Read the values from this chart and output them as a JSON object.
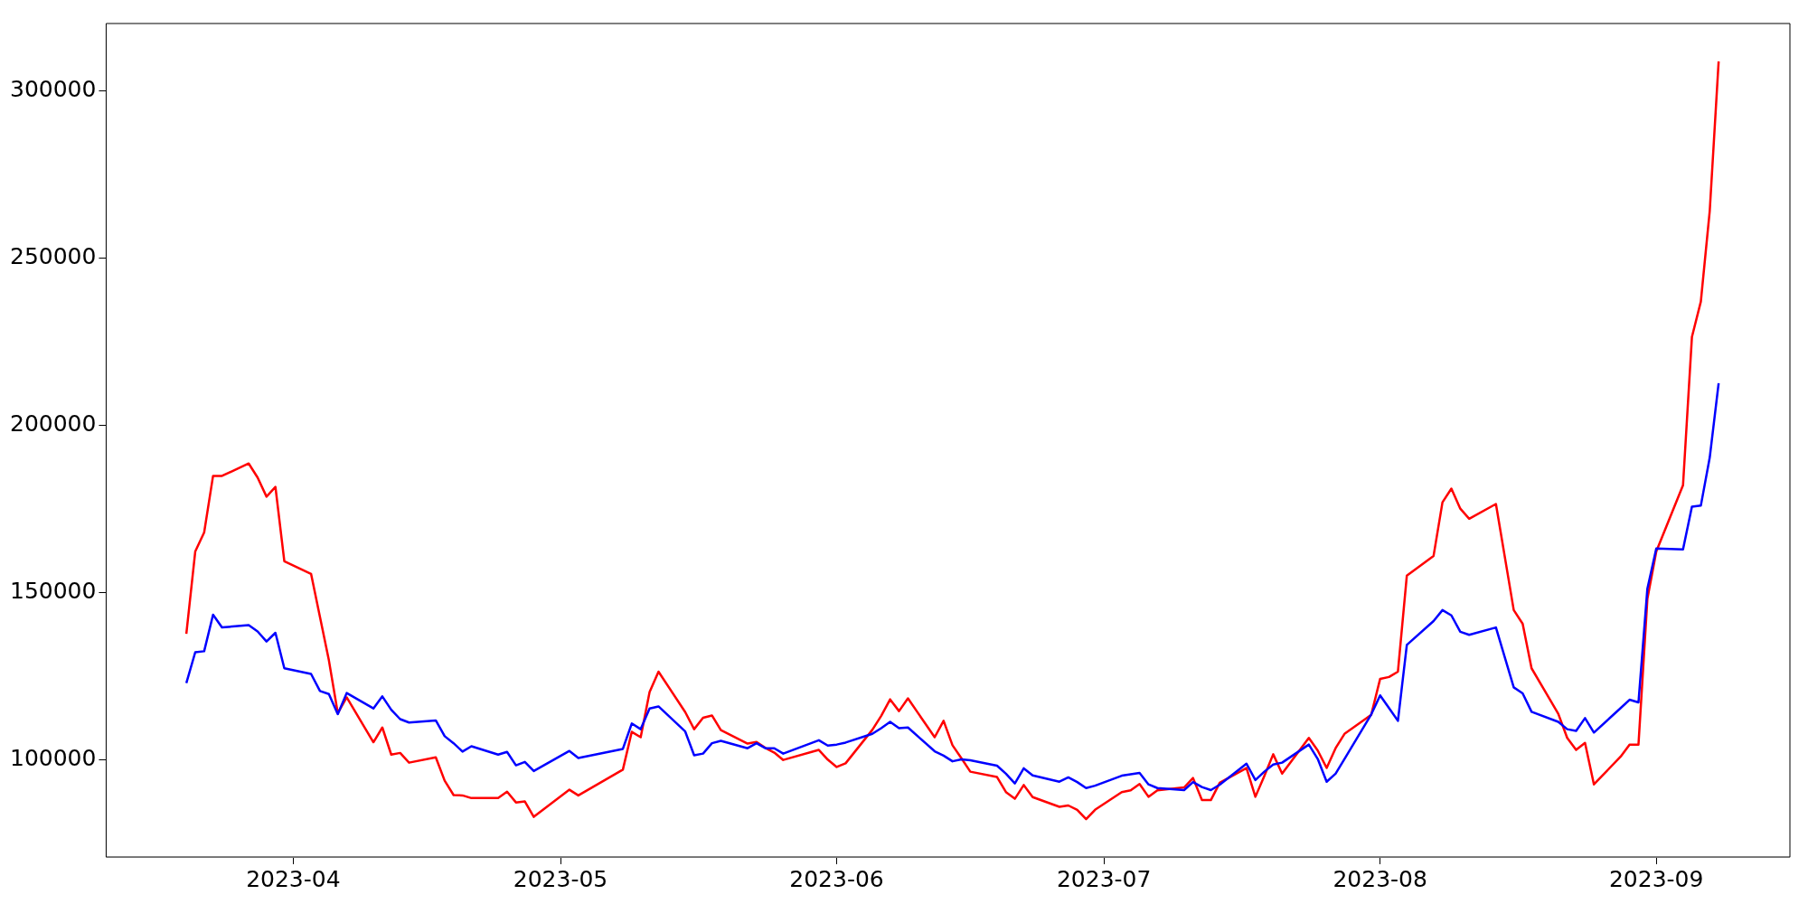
{
  "chart_data": {
    "type": "line",
    "x": [
      "2023-03-20",
      "2023-03-21",
      "2023-03-22",
      "2023-03-23",
      "2023-03-24",
      "2023-03-27",
      "2023-03-28",
      "2023-03-29",
      "2023-03-30",
      "2023-03-31",
      "2023-04-03",
      "2023-04-04",
      "2023-04-05",
      "2023-04-06",
      "2023-04-07",
      "2023-04-10",
      "2023-04-11",
      "2023-04-12",
      "2023-04-13",
      "2023-04-14",
      "2023-04-17",
      "2023-04-18",
      "2023-04-19",
      "2023-04-20",
      "2023-04-21",
      "2023-04-24",
      "2023-04-25",
      "2023-04-26",
      "2023-04-27",
      "2023-04-28",
      "2023-05-02",
      "2023-05-03",
      "2023-05-08",
      "2023-05-09",
      "2023-05-10",
      "2023-05-11",
      "2023-05-12",
      "2023-05-15",
      "2023-05-16",
      "2023-05-17",
      "2023-05-18",
      "2023-05-19",
      "2023-05-22",
      "2023-05-23",
      "2023-05-24",
      "2023-05-25",
      "2023-05-26",
      "2023-05-30",
      "2023-05-31",
      "2023-06-01",
      "2023-06-02",
      "2023-06-05",
      "2023-06-06",
      "2023-06-07",
      "2023-06-08",
      "2023-06-09",
      "2023-06-12",
      "2023-06-13",
      "2023-06-14",
      "2023-06-15",
      "2023-06-16",
      "2023-06-19",
      "2023-06-20",
      "2023-06-21",
      "2023-06-22",
      "2023-06-23",
      "2023-06-26",
      "2023-06-27",
      "2023-06-28",
      "2023-06-29",
      "2023-06-30",
      "2023-07-03",
      "2023-07-04",
      "2023-07-05",
      "2023-07-06",
      "2023-07-07",
      "2023-07-10",
      "2023-07-11",
      "2023-07-12",
      "2023-07-13",
      "2023-07-14",
      "2023-07-17",
      "2023-07-18",
      "2023-07-19",
      "2023-07-20",
      "2023-07-21",
      "2023-07-24",
      "2023-07-25",
      "2023-07-26",
      "2023-07-27",
      "2023-07-28",
      "2023-07-31",
      "2023-08-01",
      "2023-08-02",
      "2023-08-03",
      "2023-08-04",
      "2023-08-07",
      "2023-08-08",
      "2023-08-09",
      "2023-08-10",
      "2023-08-11",
      "2023-08-14",
      "2023-08-16",
      "2023-08-17",
      "2023-08-18",
      "2023-08-21",
      "2023-08-22",
      "2023-08-23",
      "2023-08-24",
      "2023-08-25",
      "2023-08-28",
      "2023-08-29",
      "2023-08-30",
      "2023-08-31",
      "2023-09-01",
      "2023-09-04",
      "2023-09-05",
      "2023-09-06",
      "2023-09-07",
      "2023-09-08"
    ],
    "series": [
      {
        "color": "#ff0000",
        "values": [
          137600,
          162200,
          167900,
          184800,
          184800,
          188500,
          184300,
          178600,
          181500,
          159300,
          155500,
          142600,
          129700,
          113900,
          118600,
          105200,
          109600,
          101500,
          102000,
          99100,
          100700,
          93700,
          89400,
          89300,
          88500,
          88500,
          90400,
          87200,
          87500,
          82900,
          91000,
          89300,
          97000,
          108300,
          106700,
          120200,
          126300,
          114200,
          109100,
          112500,
          113200,
          108800,
          104800,
          105300,
          103500,
          102100,
          99900,
          102900,
          100000,
          97800,
          98900,
          108900,
          113100,
          118000,
          114500,
          118300,
          106700,
          111600,
          104300,
          100400,
          96400,
          94800,
          90300,
          88300,
          92400,
          88800,
          85900,
          86300,
          85000,
          82200,
          85000,
          90300,
          90800,
          92700,
          88900,
          90800,
          91700,
          94500,
          87900,
          87900,
          93100,
          97500,
          88900,
          95100,
          101600,
          95800,
          106500,
          102700,
          97500,
          103400,
          107700,
          113400,
          124100,
          124700,
          126300,
          155000,
          160900,
          176900,
          181000,
          175000,
          172000,
          176400,
          144700,
          140600,
          127300,
          113700,
          106500,
          102900,
          105000,
          92600,
          100900,
          104500,
          104500,
          148000,
          162200,
          182000,
          226300,
          236900,
          264000,
          308700
        ]
      },
      {
        "color": "#0000ff",
        "values": [
          122900,
          132100,
          132400,
          143300,
          139500,
          140200,
          138300,
          135300,
          137900,
          127300,
          125600,
          120500,
          119600,
          113600,
          119900,
          115300,
          118900,
          114900,
          112100,
          111100,
          111700,
          107000,
          104900,
          102400,
          104000,
          101500,
          102300,
          98300,
          99300,
          96600,
          102600,
          100500,
          103200,
          110800,
          109100,
          115300,
          115900,
          108400,
          101300,
          101800,
          104900,
          105600,
          103400,
          104900,
          103400,
          103400,
          101800,
          105800,
          104200,
          104500,
          105100,
          107700,
          109400,
          111300,
          109400,
          109600,
          102500,
          101200,
          99500,
          100100,
          99800,
          98200,
          95800,
          92900,
          97400,
          95300,
          93400,
          94700,
          93300,
          91500,
          92200,
          95200,
          95600,
          96000,
          92600,
          91500,
          90900,
          93300,
          91800,
          90900,
          92500,
          98800,
          93900,
          96400,
          98500,
          99100,
          104500,
          100200,
          93400,
          95800,
          100200,
          113500,
          119200,
          115400,
          111600,
          134300,
          141400,
          144700,
          143100,
          138200,
          137300,
          139500,
          121600,
          119800,
          114300,
          111300,
          109100,
          108600,
          112400,
          108100,
          115400,
          117900,
          117100,
          151100,
          163100,
          162800,
          175600,
          175900,
          190300,
          212500
        ]
      }
    ],
    "xlim": [
      "2023-03-11",
      "2023-09-16"
    ],
    "xticks": [
      {
        "value": "2023-04-01",
        "label": "2023-04"
      },
      {
        "value": "2023-05-01",
        "label": "2023-05"
      },
      {
        "value": "2023-06-01",
        "label": "2023-06"
      },
      {
        "value": "2023-07-01",
        "label": "2023-07"
      },
      {
        "value": "2023-08-01",
        "label": "2023-08"
      },
      {
        "value": "2023-09-01",
        "label": "2023-09"
      }
    ],
    "ylim": [
      70900,
      320000
    ],
    "yticks": [
      100000,
      150000,
      200000,
      250000,
      300000
    ]
  }
}
